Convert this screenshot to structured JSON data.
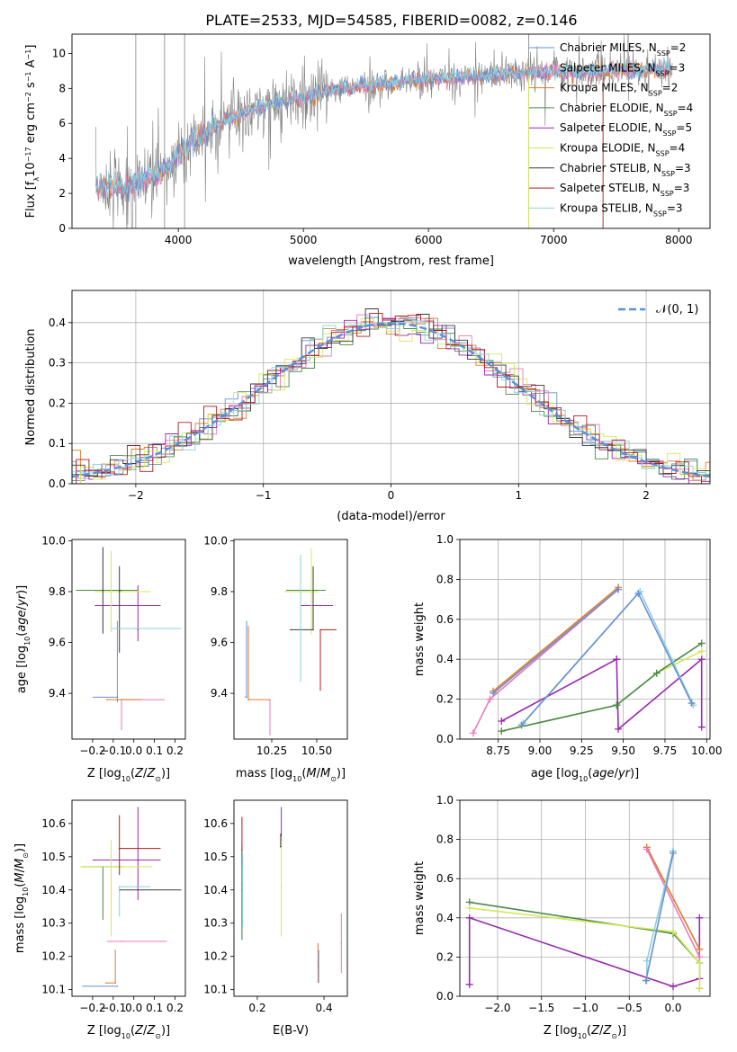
{
  "figure": {
    "title": "PLATE=2533, MJD=54585, FIBERID=0082, z=0.146"
  },
  "colors": {
    "Chabrier MILES": "#6a8fd0",
    "Salpeter MILES": "#e87ab8",
    "Kroupa MILES": "#e07a2a",
    "Chabrier ELODIE": "#4a8a4a",
    "Salpeter ELODIE": "#9a2ab0",
    "Kroupa ELODIE": "#d4e85a",
    "Chabrier STELIB": "#3a3a3a",
    "Salpeter STELIB": "#b01a1a",
    "Kroupa STELIB": "#8ad0dc",
    "data": "#808080",
    "gauss": "#5b8fd8"
  },
  "chart_data": [
    {
      "id": "spectrum",
      "type": "line",
      "xlabel": "wavelength [Angstrom, rest frame]",
      "ylabel_parts": [
        "Flux [f",
        "λ",
        "10",
        "−17",
        " erg cm",
        "−2",
        " s",
        "−1",
        " A",
        "−1",
        "]"
      ],
      "xlim": [
        3150,
        8250
      ],
      "ylim": [
        0,
        11.1
      ],
      "xticks": [
        4000,
        5000,
        6000,
        7000,
        8000
      ],
      "yticks": [
        0,
        2,
        4,
        6,
        8,
        10
      ],
      "legend_position": "top-right",
      "legend": [
        {
          "name": "Chabrier MILES",
          "nssp": "2"
        },
        {
          "name": "Salpeter MILES",
          "nssp": "3"
        },
        {
          "name": "Kroupa MILES",
          "nssp": "2"
        },
        {
          "name": "Chabrier ELODIE",
          "nssp": "4"
        },
        {
          "name": "Salpeter ELODIE",
          "nssp": "5"
        },
        {
          "name": "Kroupa ELODIE",
          "nssp": "4"
        },
        {
          "name": "Chabrier STELIB",
          "nssp": "3"
        },
        {
          "name": "Salpeter STELIB",
          "nssp": "3"
        },
        {
          "name": "Kroupa STELIB",
          "nssp": "3"
        }
      ],
      "continuum": [
        [
          3340,
          2.3
        ],
        [
          3450,
          2.4
        ],
        [
          3550,
          2.3
        ],
        [
          3650,
          2.5
        ],
        [
          3750,
          2.8
        ],
        [
          3850,
          3.1
        ],
        [
          3950,
          3.8
        ],
        [
          4050,
          4.6
        ],
        [
          4150,
          5.1
        ],
        [
          4250,
          5.6
        ],
        [
          4350,
          6.1
        ],
        [
          4450,
          6.4
        ],
        [
          4600,
          6.8
        ],
        [
          4800,
          7.2
        ],
        [
          5000,
          7.5
        ],
        [
          5200,
          7.8
        ],
        [
          5400,
          8.1
        ],
        [
          5600,
          8.2
        ],
        [
          5800,
          8.4
        ],
        [
          6000,
          8.5
        ],
        [
          6200,
          8.6
        ],
        [
          6400,
          8.7
        ],
        [
          6600,
          8.8
        ],
        [
          6800,
          8.9
        ],
        [
          7000,
          8.9
        ],
        [
          7200,
          8.9
        ],
        [
          7400,
          9.0
        ],
        [
          7600,
          9.0
        ],
        [
          7800,
          9.1
        ],
        [
          7950,
          9.1
        ]
      ]
    },
    {
      "id": "residuals",
      "type": "area",
      "xlabel": "(data-model)/error",
      "ylabel": "Normed distribution",
      "xlim": [
        -2.5,
        2.5
      ],
      "ylim": [
        0,
        0.48
      ],
      "xticks": [
        -2,
        -1,
        0,
        1,
        2
      ],
      "yticks": [
        0.0,
        0.1,
        0.2,
        0.3,
        0.4
      ],
      "grid": true,
      "legend_position": "top-right",
      "gauss_label": "𝒩(0, 1)"
    },
    {
      "id": "age-vs-Z",
      "type": "scatter",
      "ylabel": "age  [log10(age/yr)]",
      "xlabel": "Z [log10(Z/Z⊙)]",
      "xlim": [
        -0.3,
        0.25
      ],
      "ylim": [
        9.22,
        10.005
      ],
      "xticks": [
        -0.2,
        -0.1,
        0.0,
        0.1,
        0.2
      ],
      "yticks": [
        9.4,
        9.6,
        9.8,
        10.0
      ],
      "points": [
        {
          "model": "Chabrier MILES",
          "x": -0.08,
          "xerr": [
            0.12,
            0.0
          ],
          "y": 9.385,
          "yerr": [
            0.02,
            0.3
          ]
        },
        {
          "model": "Salpeter MILES",
          "x": -0.06,
          "xerr": [
            0.0,
            0.21
          ],
          "y": 9.375,
          "yerr": [
            0.12,
            0.0
          ]
        },
        {
          "model": "Kroupa MILES",
          "x": -0.13,
          "xerr": [
            0.0,
            0.17
          ],
          "y": 9.375,
          "yerr": [
            0.0,
            0.0
          ]
        },
        {
          "model": "Chabrier ELODIE",
          "x": -0.06,
          "xerr": [
            0.22,
            0.08
          ],
          "y": 9.805,
          "yerr": [
            0.0,
            0.0
          ]
        },
        {
          "model": "Salpeter ELODIE",
          "x": 0.02,
          "xerr": [
            0.21,
            0.11
          ],
          "y": 9.745,
          "yerr": [
            0.14,
            0.08
          ]
        },
        {
          "model": "Kroupa ELODIE",
          "x": -0.11,
          "xerr": [
            0.08,
            0.19
          ],
          "y": 9.8,
          "yerr": [
            0.16,
            0.16
          ]
        },
        {
          "model": "Chabrier STELIB",
          "x": -0.07,
          "xerr": [
            0.0,
            0.0
          ],
          "y": 9.8,
          "yerr": [
            0.24,
            0.1
          ]
        },
        {
          "model": "Salpeter STELIB",
          "x": 0.02,
          "xerr": [
            0.0,
            0.0
          ],
          "y": 9.65,
          "yerr": [
            0.0,
            0.0
          ]
        },
        {
          "model": "Kroupa STELIB",
          "x": 0.01,
          "xerr": [
            0.12,
            0.22
          ],
          "y": 9.655,
          "yerr": [
            0.0,
            0.0
          ]
        },
        {
          "model": "Chabrier STELIB",
          "x": -0.15,
          "xerr": [
            0.0,
            0.0
          ],
          "y": 9.805,
          "yerr": [
            0.17,
            0.17
          ]
        }
      ]
    },
    {
      "id": "age-vs-mass",
      "type": "scatter",
      "xlabel": "mass [log10(M/M⊙)]",
      "xlim": [
        10.04,
        10.67
      ],
      "ylim": [
        9.22,
        10.005
      ],
      "xticks": [
        10.25,
        10.5
      ],
      "yticks": [
        9.4,
        9.6,
        9.8,
        10.0
      ],
      "points": [
        {
          "model": "Chabrier MILES",
          "x": 10.11,
          "xerr": [
            0.01,
            0.0
          ],
          "y": 9.385,
          "yerr": [
            0.0,
            0.3
          ]
        },
        {
          "model": "Salpeter MILES",
          "x": 10.24,
          "xerr": [
            0.0,
            0.0
          ],
          "y": 9.375,
          "yerr": [
            0.14,
            0.0
          ]
        },
        {
          "model": "Kroupa MILES",
          "x": 10.12,
          "xerr": [
            0.0,
            0.12
          ],
          "y": 9.375,
          "yerr": [
            0.0,
            0.29
          ]
        },
        {
          "model": "Chabrier ELODIE",
          "x": 10.47,
          "xerr": [
            0.14,
            0.08
          ],
          "y": 9.805,
          "yerr": [
            0.0,
            0.0
          ]
        },
        {
          "model": "Salpeter ELODIE",
          "x": 10.52,
          "xerr": [
            0.11,
            0.07
          ],
          "y": 9.745,
          "yerr": [
            0.0,
            0.0
          ]
        },
        {
          "model": "Kroupa ELODIE",
          "x": 10.47,
          "xerr": [
            0.15,
            0.04
          ],
          "y": 9.8,
          "yerr": [
            0.17,
            0.17
          ]
        },
        {
          "model": "Chabrier STELIB",
          "x": 10.48,
          "xerr": [
            0.13,
            0.0
          ],
          "y": 9.65,
          "yerr": [
            0.0,
            0.25
          ]
        },
        {
          "model": "Salpeter STELIB",
          "x": 10.52,
          "xerr": [
            0.0,
            0.09
          ],
          "y": 9.65,
          "yerr": [
            0.24,
            0.0
          ]
        },
        {
          "model": "Kroupa STELIB",
          "x": 10.41,
          "xerr": [
            0.0,
            0.0
          ],
          "y": 9.655,
          "yerr": [
            0.21,
            0.29
          ]
        }
      ]
    },
    {
      "id": "massweight-vs-age",
      "type": "line",
      "ylabel": "mass weight",
      "xlabel": "age  [log10(age/yr)]",
      "xlim": [
        8.52,
        10.02
      ],
      "ylim": [
        0,
        1.0
      ],
      "xticks": [
        8.75,
        9.0,
        9.25,
        9.5,
        9.75,
        10.0
      ],
      "yticks": [
        0.0,
        0.2,
        0.4,
        0.6,
        0.8,
        1.0
      ],
      "grid": true,
      "series": [
        {
          "model": "Salpeter MILES",
          "x": [
            8.6,
            8.7,
            9.47
          ],
          "y": [
            0.03,
            0.2,
            0.75
          ]
        },
        {
          "model": "Kroupa MILES",
          "x": [
            8.72,
            9.47
          ],
          "y": [
            0.24,
            0.76
          ]
        },
        {
          "model": "Chabrier MILES",
          "x": [
            8.72,
            9.47
          ],
          "y": [
            0.23,
            0.75
          ]
        },
        {
          "model": "Salpeter ELODIE",
          "x": [
            8.77,
            9.46,
            9.46,
            9.47,
            9.97,
            9.97
          ],
          "y": [
            0.09,
            0.4,
            0.4,
            0.05,
            0.4,
            0.06
          ]
        },
        {
          "model": "Kroupa ELODIE",
          "x": [
            8.77,
            9.46,
            9.46,
            9.7,
            9.97
          ],
          "y": [
            0.04,
            0.17,
            0.17,
            0.33,
            0.44
          ]
        },
        {
          "model": "Chabrier ELODIE",
          "x": [
            8.77,
            9.46,
            9.46,
            9.7,
            9.97
          ],
          "y": [
            0.04,
            0.17,
            0.17,
            0.33,
            0.48
          ]
        },
        {
          "model": "Kroupa STELIB",
          "x": [
            8.9,
            9.6,
            9.92
          ],
          "y": [
            0.08,
            0.74,
            0.17
          ]
        },
        {
          "model": "Chabrier MILES",
          "x": [
            8.89,
            9.59,
            9.91
          ],
          "y": [
            0.07,
            0.73,
            0.18
          ]
        }
      ]
    },
    {
      "id": "mass-vs-Z",
      "type": "scatter",
      "ylabel": "mass [log10(M/M⊙)]",
      "xlabel": "Z [log10(Z/Z⊙)]",
      "xlim": [
        -0.3,
        0.25
      ],
      "ylim": [
        10.08,
        10.67
      ],
      "xticks": [
        -0.2,
        -0.1,
        0.0,
        0.1,
        0.2
      ],
      "yticks": [
        10.1,
        10.2,
        10.3,
        10.4,
        10.5,
        10.6
      ],
      "points": [
        {
          "model": "Chabrier MILES",
          "x": -0.08,
          "xerr": [
            0.17,
            0.0
          ],
          "y": 10.11,
          "yerr": [
            0.0,
            0.0
          ]
        },
        {
          "model": "Salpeter MILES",
          "x": -0.06,
          "xerr": [
            0.07,
            0.22
          ],
          "y": 10.245,
          "yerr": [
            0.0,
            0.0
          ]
        },
        {
          "model": "Kroupa MILES",
          "x": -0.09,
          "xerr": [
            0.05,
            0.0
          ],
          "y": 10.12,
          "yerr": [
            0.0,
            0.1
          ]
        },
        {
          "model": "Chabrier ELODIE",
          "x": -0.15,
          "xerr": [
            0.1,
            0.1
          ],
          "y": 10.47,
          "yerr": [
            0.16,
            0.0
          ]
        },
        {
          "model": "Salpeter ELODIE",
          "x": 0.02,
          "xerr": [
            0.22,
            0.11
          ],
          "y": 10.49,
          "yerr": [
            0.12,
            0.16
          ]
        },
        {
          "model": "Kroupa ELODIE",
          "x": -0.11,
          "xerr": [
            0.15,
            0.2
          ],
          "y": 10.47,
          "yerr": [
            0.21,
            0.08
          ]
        },
        {
          "model": "Chabrier STELIB",
          "x": -0.07,
          "xerr": [
            0.0,
            0.3
          ],
          "y": 10.4,
          "yerr": [
            0.0,
            0.0
          ]
        },
        {
          "model": "Salpeter STELIB",
          "x": -0.07,
          "xerr": [
            0.0,
            0.2
          ],
          "y": 10.525,
          "yerr": [
            0.08,
            0.1
          ]
        },
        {
          "model": "Kroupa STELIB",
          "x": -0.07,
          "xerr": [
            0.0,
            0.15
          ],
          "y": 10.41,
          "yerr": [
            0.09,
            0.0
          ]
        }
      ]
    },
    {
      "id": "mass-vs-ebv",
      "type": "scatter",
      "xlabel": "E(B-V)",
      "xlim": [
        0.13,
        0.47
      ],
      "ylim": [
        10.08,
        10.67
      ],
      "xticks": [
        0.2,
        0.4
      ],
      "yticks": [
        10.1,
        10.2,
        10.3,
        10.4,
        10.5,
        10.6
      ],
      "points": [
        {
          "model": "Chabrier MILES",
          "x": 0.154,
          "y": 10.42,
          "yerr": [
            0.17,
            0.12
          ]
        },
        {
          "model": "Salpeter STELIB",
          "x": 0.154,
          "y": 10.52,
          "yerr": [
            0.05,
            0.1
          ]
        },
        {
          "model": "Chabrier ELODIE",
          "x": 0.154,
          "y": 10.4,
          "yerr": [
            0.15,
            0.12
          ]
        },
        {
          "model": "Kroupa STELIB",
          "x": 0.156,
          "y": 10.39,
          "yerr": [
            0.1,
            0.12
          ]
        },
        {
          "model": "Salpeter ELODIE",
          "x": 0.272,
          "y": 10.55,
          "yerr": [
            0.0,
            0.1
          ]
        },
        {
          "model": "Kroupa ELODIE",
          "x": 0.272,
          "y": 10.41,
          "yerr": [
            0.15,
            0.15
          ]
        },
        {
          "model": "Chabrier STELIB",
          "x": 0.27,
          "y": 10.53,
          "yerr": [
            0.0,
            0.04
          ]
        },
        {
          "model": "Kroupa MILES",
          "x": 0.382,
          "y": 10.18,
          "yerr": [
            0.06,
            0.06
          ]
        },
        {
          "model": "Chabrier MILES",
          "x": 0.384,
          "y": 10.17,
          "yerr": [
            0.05,
            0.05
          ]
        },
        {
          "model": "Salpeter MILES",
          "x": 0.452,
          "y": 10.24,
          "yerr": [
            0.09,
            0.09
          ]
        }
      ]
    },
    {
      "id": "massweight-vs-Z",
      "type": "line",
      "ylabel": "mass weight",
      "xlabel": "Z [log10(Z/Z⊙)]",
      "xlim": [
        -2.43,
        0.42
      ],
      "ylim": [
        0,
        1.0
      ],
      "xticks": [
        -2.0,
        -1.5,
        -1.0,
        -0.5,
        0.0
      ],
      "yticks": [
        0.0,
        0.2,
        0.4,
        0.6,
        0.8,
        1.0
      ],
      "grid": true,
      "series": [
        {
          "model": "Salpeter ELODIE",
          "x": [
            -2.32,
            -2.32,
            0.0,
            0.3,
            0.3
          ],
          "y": [
            0.06,
            0.4,
            0.05,
            0.09,
            0.4
          ]
        },
        {
          "model": "Chabrier ELODIE",
          "x": [
            -2.32,
            0.0,
            0.3,
            0.3
          ],
          "y": [
            0.48,
            0.32,
            0.17,
            0.04
          ]
        },
        {
          "model": "Kroupa ELODIE",
          "x": [
            -2.32,
            0.0,
            0.3,
            0.3
          ],
          "y": [
            0.45,
            0.33,
            0.17,
            0.04
          ]
        },
        {
          "model": "Kroupa MILES",
          "x": [
            -0.3,
            0.3
          ],
          "y": [
            0.76,
            0.24
          ]
        },
        {
          "model": "Salpeter MILES",
          "x": [
            -0.3,
            0.3
          ],
          "y": [
            0.75,
            0.2
          ]
        },
        {
          "model": "Kroupa STELIB",
          "x": [
            -0.3,
            -0.3,
            0.0,
            0.0
          ],
          "y": [
            0.08,
            0.18,
            0.74,
            0.74
          ]
        },
        {
          "model": "Chabrier MILES",
          "x": [
            -0.31,
            0.0
          ],
          "y": [
            0.08,
            0.73
          ]
        }
      ]
    }
  ]
}
